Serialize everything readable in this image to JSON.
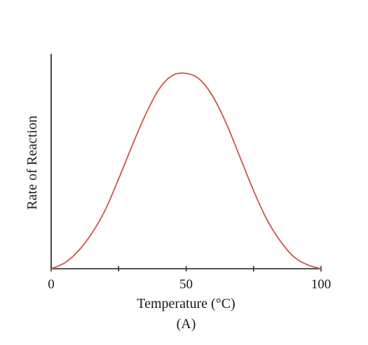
{
  "chart_data": {
    "type": "line",
    "title": "",
    "panel_label": "(A)",
    "xlabel": "Temperature (°C)",
    "ylabel": "Rate of Reaction",
    "xlim": [
      0,
      100
    ],
    "ylim": [
      0,
      1.1
    ],
    "x_ticks": [
      0,
      25,
      50,
      75,
      100
    ],
    "x_tick_labels": [
      {
        "value": 0,
        "label": "0"
      },
      {
        "value": 50,
        "label": "50"
      },
      {
        "value": 100,
        "label": "100"
      }
    ],
    "y_ticks": [],
    "grid": false,
    "series": [
      {
        "color": "#c8584a",
        "x": [
          0,
          5,
          10,
          15,
          20,
          25,
          30,
          35,
          40,
          45,
          50,
          55,
          60,
          65,
          70,
          75,
          80,
          85,
          90,
          95,
          100
        ],
        "y": [
          0.0,
          0.03,
          0.09,
          0.18,
          0.3,
          0.46,
          0.63,
          0.79,
          0.92,
          0.99,
          1.0,
          0.97,
          0.88,
          0.74,
          0.57,
          0.4,
          0.25,
          0.14,
          0.06,
          0.02,
          0.0
        ]
      }
    ]
  }
}
